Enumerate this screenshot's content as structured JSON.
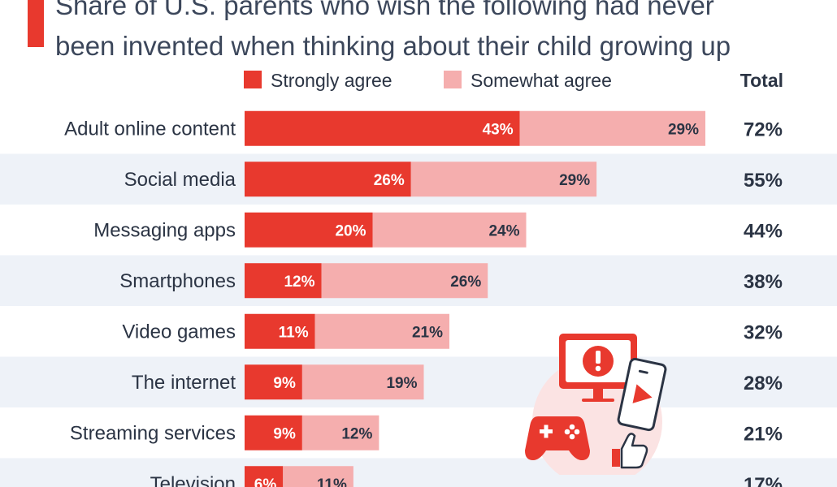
{
  "title_lines": [
    "Share of U.S. parents who wish the following had never",
    "been invented when thinking about their child growing up"
  ],
  "legend": {
    "strongly": "Strongly agree",
    "somewhat": "Somewhat agree",
    "total": "Total"
  },
  "colors": {
    "strongly": "#e8392e",
    "somewhat": "#f5aeae",
    "band": "#eef2f8",
    "accent": "#e8392e"
  },
  "chart_data": {
    "type": "bar",
    "orientation": "horizontal",
    "stacked": true,
    "categories": [
      "Adult online content",
      "Social media",
      "Messaging apps",
      "Smartphones",
      "Video games",
      "The internet",
      "Streaming services",
      "Television"
    ],
    "series": [
      {
        "name": "Strongly agree",
        "values": [
          43,
          26,
          20,
          12,
          11,
          9,
          9,
          6
        ]
      },
      {
        "name": "Somewhat agree",
        "values": [
          29,
          29,
          24,
          26,
          21,
          19,
          12,
          11
        ]
      }
    ],
    "totals": [
      72,
      55,
      44,
      38,
      32,
      28,
      21,
      17
    ],
    "value_suffix": "%",
    "xlim": [
      0,
      100
    ],
    "legend_position": "top",
    "grid": false
  }
}
